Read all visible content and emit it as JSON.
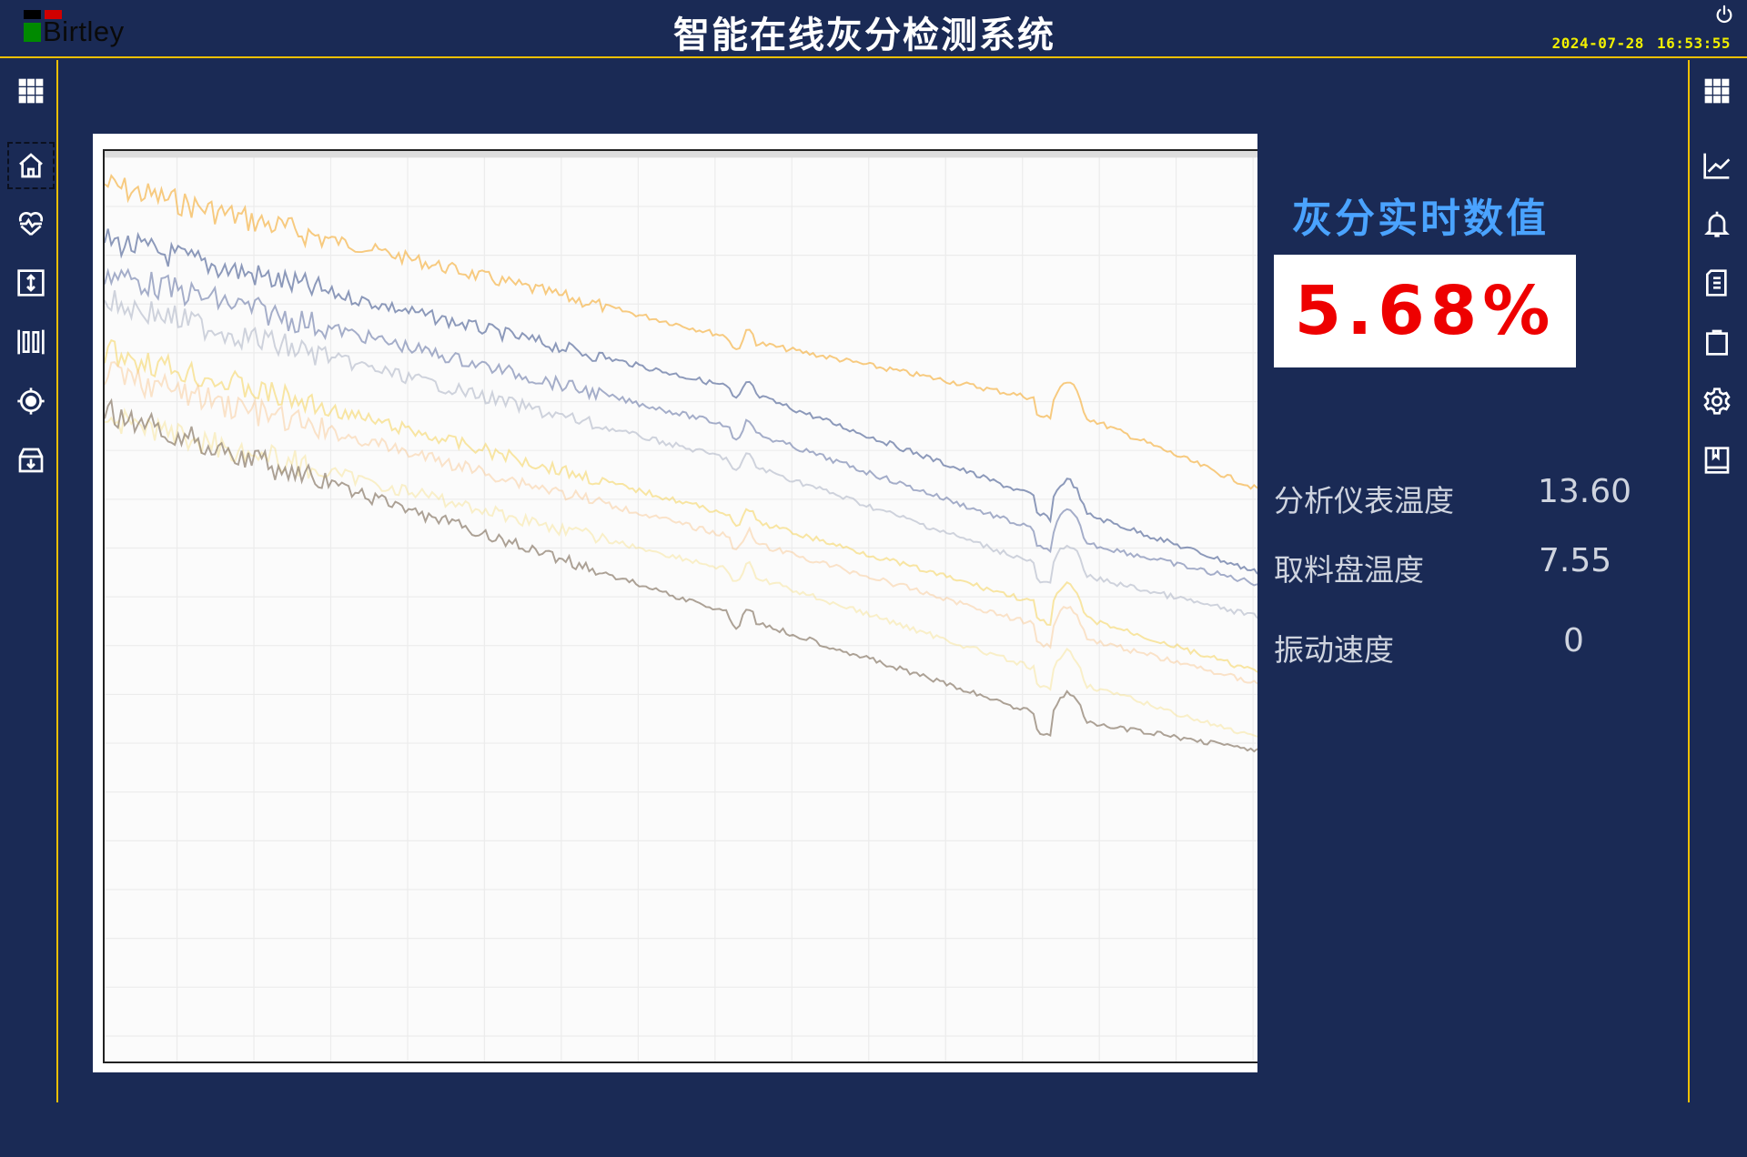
{
  "header": {
    "logo_text": "Birtley",
    "title": "智能在线灰分检测系统",
    "date": "2024-07-28",
    "time": "16:53:55",
    "power_icon": "power-icon"
  },
  "left_sidebar": {
    "items": [
      {
        "icon": "grid-menu-icon"
      },
      {
        "icon": "home-icon",
        "selected": true
      },
      {
        "icon": "heart-pulse-icon"
      },
      {
        "icon": "vertical-resize-icon"
      },
      {
        "icon": "barcode-icon"
      },
      {
        "icon": "target-icon"
      },
      {
        "icon": "archive-download-icon"
      }
    ]
  },
  "right_sidebar": {
    "items": [
      {
        "icon": "grid-menu-icon"
      },
      {
        "icon": "line-chart-icon"
      },
      {
        "icon": "bell-icon"
      },
      {
        "icon": "document-icon"
      },
      {
        "icon": "clipboard-icon"
      },
      {
        "icon": "gear-icon"
      },
      {
        "icon": "book-icon"
      }
    ]
  },
  "realtime": {
    "title": "灰分实时数值",
    "value": "5.68%",
    "value_color": "#ee0000"
  },
  "readings": [
    {
      "label": "分析仪表温度",
      "value": "13.60"
    },
    {
      "label": "取料盘温度",
      "value": "7.55"
    },
    {
      "label": "振动速度",
      "value": "0"
    }
  ],
  "colors": {
    "background": "#1a2a55",
    "border": "#f0c000",
    "accent": "#4aa3ff",
    "clock": "#f2f000"
  }
}
